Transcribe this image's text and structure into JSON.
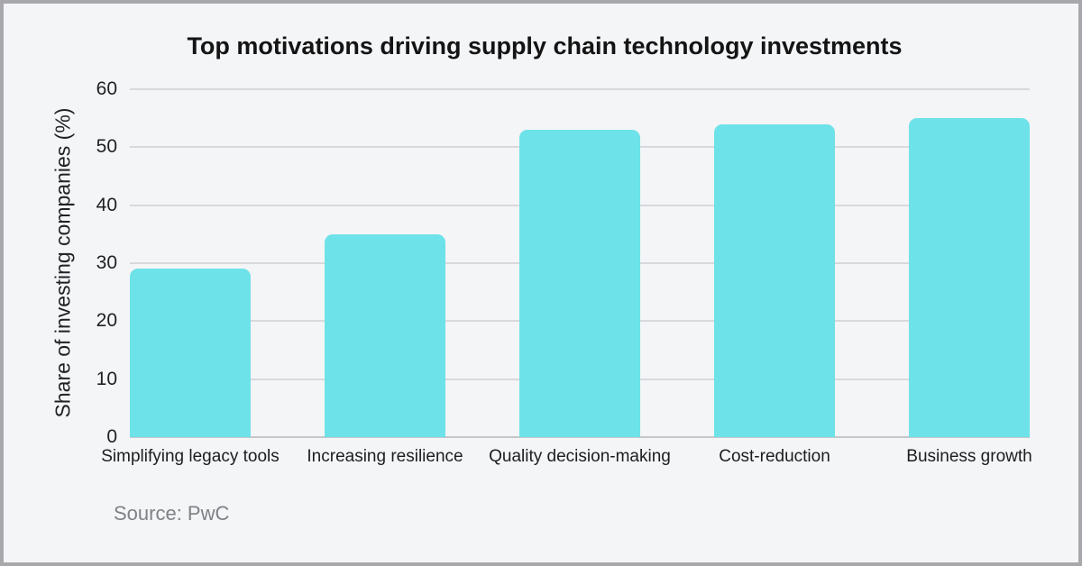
{
  "chart_data": {
    "type": "bar",
    "title": "Top motivations driving supply chain technology investments",
    "ylabel": "Share of investing companies (%)",
    "xlabel": "",
    "categories": [
      "Simplifying legacy tools",
      "Increasing resilience",
      "Quality decision-making",
      "Cost-reduction",
      "Business growth"
    ],
    "values": [
      29,
      35,
      53,
      54,
      55
    ],
    "ylim": [
      0,
      60
    ],
    "yticks": [
      0,
      10,
      20,
      30,
      40,
      50,
      60
    ],
    "grid": "horizontal",
    "legend": "none",
    "bar_color": "#6ee2e9",
    "source": "Source: PwC"
  }
}
